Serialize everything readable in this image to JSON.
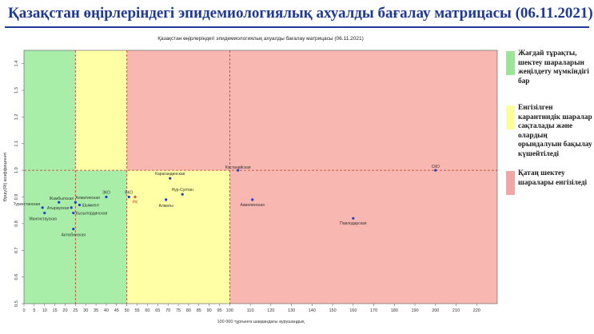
{
  "page": {
    "title": "Қазақстан өңірлеріндегі эпидемиологиялық ахуалды бағалау матрицасы  (06.11.2021)"
  },
  "legend": {
    "items": [
      {
        "label": "Жағдай тұрақты, шектеу шараларын жеңілдету мүмкіндігі бар",
        "color": "#99e699"
      },
      {
        "label": "Енгізілген карантиндік шаралар сақталады және олардың орындалуын бақылау күшейтіледі",
        "color": "#ffff99"
      },
      {
        "label": "Қатаң шектеу шаралары енгізіледі",
        "color": "#f4a6a6"
      }
    ]
  },
  "chart_data": {
    "type": "scatter",
    "title": "Қазақстан өңірлеріндегі эпидемиологиялық ахуалды бағалау матрицасы  (06.11.2021)",
    "xlabel": "100 000 тұрғынға шаққандағы аурушаңдық",
    "ylabel": "Өршу(Rt) коэффициенті",
    "xlim": [
      0,
      230
    ],
    "ylim": [
      0.5,
      1.45
    ],
    "xticks": [
      0,
      5,
      10,
      15,
      20,
      25,
      30,
      35,
      40,
      45,
      50,
      55,
      60,
      65,
      70,
      75,
      80,
      85,
      90,
      95,
      100,
      110,
      120,
      130,
      140,
      150,
      160,
      170,
      180,
      190,
      200,
      210,
      220
    ],
    "yticks": [
      0.5,
      0.6,
      0.7,
      0.8,
      0.9,
      1.0,
      1.1,
      1.2,
      1.3,
      1.4
    ],
    "ytick_labels": [
      "0.5",
      "0.6",
      "0.7",
      "0.8",
      "0.9",
      "1.0",
      "1.1",
      "1.2",
      "1.3",
      "1.4"
    ],
    "grid": false,
    "zones": [
      {
        "xmin": 0,
        "xmax": 50,
        "ymin": 0.5,
        "ymax": 1.0,
        "color": "#a8eea8"
      },
      {
        "xmin": 0,
        "xmax": 25,
        "ymin": 1.0,
        "ymax": 1.45,
        "color": "#a8eea8"
      },
      {
        "xmin": 25,
        "xmax": 50,
        "ymin": 1.0,
        "ymax": 1.45,
        "color": "#ffffa6"
      },
      {
        "xmin": 50,
        "xmax": 100,
        "ymin": 0.5,
        "ymax": 1.0,
        "color": "#ffffa6"
      },
      {
        "xmin": 50,
        "xmax": 230,
        "ymin": 1.0,
        "ymax": 1.45,
        "color": "#f8b7b0"
      },
      {
        "xmin": 100,
        "xmax": 230,
        "ymin": 0.5,
        "ymax": 1.0,
        "color": "#f8b7b0"
      }
    ],
    "threshold_lines": {
      "x": [
        25,
        50,
        100
      ],
      "y": [
        1.0
      ],
      "color": "#c0392b"
    },
    "points": [
      {
        "label": "Туркестанская",
        "x": 9,
        "y": 0.86,
        "color": "#1f3fbf"
      },
      {
        "label": "Мангистауская",
        "x": 10,
        "y": 0.84,
        "color": "#1f3fbf"
      },
      {
        "label": "Жамбылская",
        "x": 17,
        "y": 0.88,
        "color": "#1f3fbf"
      },
      {
        "label": "Алматинская",
        "x": 25,
        "y": 0.88,
        "color": "#1f3fbf"
      },
      {
        "label": "Атырауская",
        "x": 23,
        "y": 0.86,
        "color": "#1f3fbf"
      },
      {
        "label": "Шымкент",
        "x": 27,
        "y": 0.87,
        "color": "#1f3fbf"
      },
      {
        "label": "Кызылординская",
        "x": 24,
        "y": 0.84,
        "color": "#1f3fbf"
      },
      {
        "label": "ЗКО",
        "x": 40,
        "y": 0.9,
        "color": "#1f3fbf"
      },
      {
        "label": "Актюбинская",
        "x": 24,
        "y": 0.78,
        "color": "#1f3fbf"
      },
      {
        "label": "ВКО",
        "x": 51,
        "y": 0.9,
        "color": "#1f3fbf"
      },
      {
        "label": "РК",
        "x": 54,
        "y": 0.9,
        "color": "#e74c3c"
      },
      {
        "label": "Карагандинская",
        "x": 71,
        "y": 0.97,
        "color": "#1f3fbf"
      },
      {
        "label": "Нур-Султан",
        "x": 77,
        "y": 0.91,
        "color": "#1f3fbf"
      },
      {
        "label": "Алматы",
        "x": 69,
        "y": 0.89,
        "color": "#1f3fbf"
      },
      {
        "label": "Костанайская",
        "x": 104,
        "y": 1.0,
        "color": "#1f3fbf"
      },
      {
        "label": "Акмолинская",
        "x": 111,
        "y": 0.89,
        "color": "#1f3fbf"
      },
      {
        "label": "Павлодарская",
        "x": 160,
        "y": 0.82,
        "color": "#1f3fbf"
      },
      {
        "label": "СКО",
        "x": 200,
        "y": 1.0,
        "color": "#1f3fbf"
      }
    ]
  }
}
